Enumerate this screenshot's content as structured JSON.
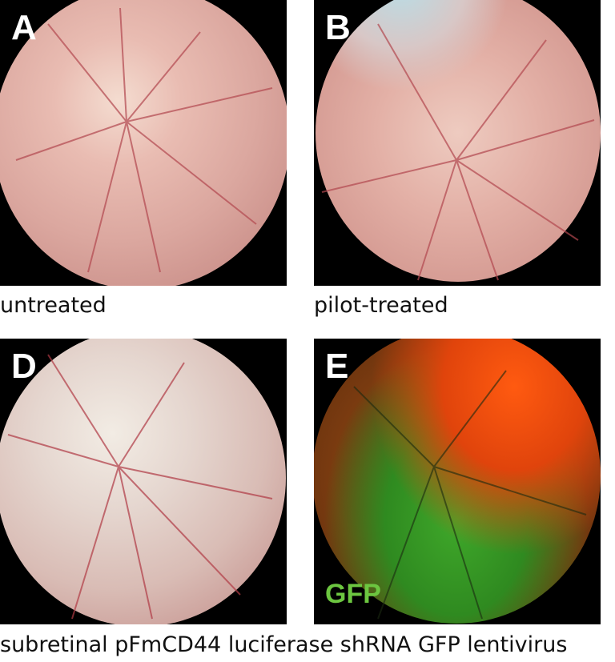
{
  "panels": [
    {
      "letter": "A",
      "caption": "untreated"
    },
    {
      "letter": "B",
      "caption": "pilot-treated"
    },
    {
      "letter": "D"
    },
    {
      "letter": "E",
      "overlay_label": "GFP"
    }
  ],
  "bottom_caption": "subretinal pFmCD44 luciferase shRNA GFP lentivirus",
  "colors": {
    "gfp_label": "#6cc640",
    "background": "#000000"
  }
}
